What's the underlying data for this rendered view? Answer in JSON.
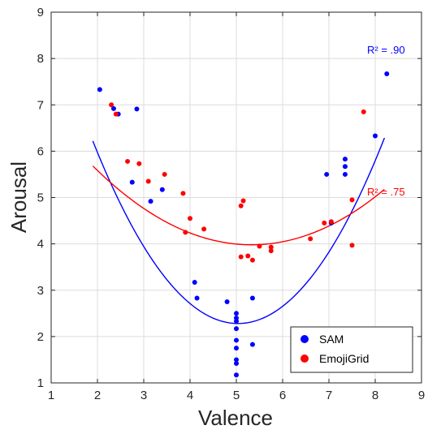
{
  "chart_data": {
    "type": "scatter",
    "xlabel": "Valence",
    "ylabel": "Arousal",
    "xlim": [
      1,
      9
    ],
    "ylim": [
      1,
      9
    ],
    "xticks": [
      "1",
      "2",
      "3",
      "4",
      "5",
      "6",
      "7",
      "8",
      "9"
    ],
    "yticks": [
      "1",
      "2",
      "3",
      "4",
      "5",
      "6",
      "7",
      "8",
      "9"
    ],
    "grid": true,
    "legend_position": "bottom-right",
    "series": [
      {
        "name": "SAM",
        "color": "#0000ff",
        "points": [
          [
            2.05,
            7.33
          ],
          [
            2.35,
            6.92
          ],
          [
            2.45,
            6.8
          ],
          [
            2.85,
            6.91
          ],
          [
            2.75,
            5.33
          ],
          [
            3.15,
            4.92
          ],
          [
            3.4,
            5.17
          ],
          [
            4.1,
            3.17
          ],
          [
            4.15,
            2.83
          ],
          [
            4.8,
            2.75
          ],
          [
            5.0,
            2.5
          ],
          [
            5.0,
            2.4
          ],
          [
            5.0,
            2.33
          ],
          [
            5.0,
            2.17
          ],
          [
            5.0,
            1.92
          ],
          [
            5.0,
            1.75
          ],
          [
            5.0,
            1.5
          ],
          [
            5.0,
            1.42
          ],
          [
            5.0,
            1.17
          ],
          [
            5.35,
            2.83
          ],
          [
            5.35,
            1.83
          ],
          [
            6.95,
            5.5
          ],
          [
            7.05,
            4.45
          ],
          [
            7.35,
            5.83
          ],
          [
            7.35,
            5.67
          ],
          [
            7.35,
            5.5
          ],
          [
            8.0,
            6.33
          ],
          [
            8.25,
            7.67
          ]
        ],
        "fit": {
          "a": 0.4003,
          "b": -4.0326,
          "c": 12.4375,
          "x_range": [
            1.9,
            8.2
          ]
        },
        "r2_label": "R² = .90"
      },
      {
        "name": "EmojiGrid",
        "color": "#ff0000",
        "points": [
          [
            2.3,
            7.0
          ],
          [
            2.4,
            6.8
          ],
          [
            2.65,
            5.78
          ],
          [
            2.9,
            5.73
          ],
          [
            3.1,
            5.35
          ],
          [
            3.45,
            5.5
          ],
          [
            3.85,
            5.09
          ],
          [
            3.9,
            4.25
          ],
          [
            4.0,
            4.55
          ],
          [
            4.3,
            4.32
          ],
          [
            5.1,
            4.82
          ],
          [
            5.15,
            4.93
          ],
          [
            5.1,
            3.72
          ],
          [
            5.25,
            3.74
          ],
          [
            5.35,
            3.65
          ],
          [
            5.5,
            3.95
          ],
          [
            5.75,
            3.93
          ],
          [
            5.75,
            3.85
          ],
          [
            6.6,
            4.11
          ],
          [
            6.9,
            4.45
          ],
          [
            7.05,
            4.48
          ],
          [
            7.5,
            4.95
          ],
          [
            7.5,
            3.97
          ],
          [
            7.75,
            6.85
          ]
        ],
        "fit": {
          "a": 0.1449,
          "b": -1.5437,
          "c": 8.0916,
          "x_range": [
            1.9,
            8.2
          ]
        },
        "r2_label": "R² = .75"
      }
    ]
  }
}
